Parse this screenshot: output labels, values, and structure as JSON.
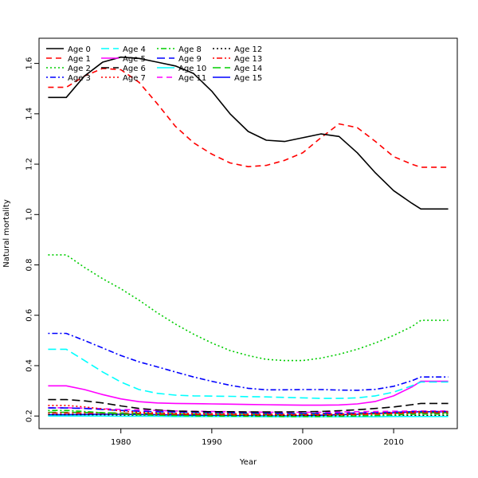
{
  "chart_data": {
    "type": "line",
    "title": "",
    "xlabel": "Year",
    "ylabel": "Natural mortality",
    "xlim": [
      1971,
      2017
    ],
    "ylim": [
      0.15,
      1.7
    ],
    "grid": false,
    "legend_position": "top-left",
    "x_ticks": [
      1980,
      1990,
      2000,
      2010
    ],
    "x_tick_labels": [
      "1980",
      "1990",
      "2000",
      "2010"
    ],
    "y_ticks": [
      0.2,
      0.4,
      0.6,
      0.8,
      1.0,
      1.2,
      1.4,
      1.6
    ],
    "y_tick_labels": [
      "0.2",
      "0.4",
      "0.6",
      "0.8",
      "1.0",
      "1.2",
      "1.4",
      "1.6"
    ],
    "x": [
      1972,
      1974,
      1976,
      1978,
      1980,
      1982,
      1984,
      1986,
      1988,
      1990,
      1992,
      1994,
      1996,
      1998,
      2000,
      2002,
      2004,
      2006,
      2008,
      2010,
      2012,
      2013,
      2014,
      2016
    ],
    "series": [
      {
        "name": "Age 0",
        "color": "#000000",
        "dash": "solid",
        "values": [
          1.465,
          1.465,
          1.55,
          1.605,
          1.625,
          1.62,
          1.605,
          1.59,
          1.56,
          1.49,
          1.4,
          1.33,
          1.295,
          1.29,
          1.305,
          1.32,
          1.31,
          1.245,
          1.165,
          1.095,
          1.045,
          1.022,
          1.022,
          1.022
        ]
      },
      {
        "name": "Age 1",
        "color": "#ff0000",
        "dash": "dashed",
        "values": [
          1.505,
          1.505,
          1.55,
          1.58,
          1.575,
          1.525,
          1.44,
          1.35,
          1.285,
          1.24,
          1.205,
          1.19,
          1.195,
          1.215,
          1.245,
          1.305,
          1.36,
          1.345,
          1.29,
          1.23,
          1.2,
          1.188,
          1.188,
          1.188
        ]
      },
      {
        "name": "Age 2",
        "color": "#00cd00",
        "dash": "dotted",
        "values": [
          0.84,
          0.84,
          0.79,
          0.745,
          0.705,
          0.66,
          0.61,
          0.565,
          0.525,
          0.49,
          0.46,
          0.44,
          0.425,
          0.42,
          0.42,
          0.43,
          0.445,
          0.465,
          0.49,
          0.52,
          0.555,
          0.58,
          0.58,
          0.58
        ]
      },
      {
        "name": "Age 3",
        "color": "#0000ff",
        "dash": "dashdot",
        "values": [
          0.528,
          0.528,
          0.5,
          0.47,
          0.44,
          0.415,
          0.395,
          0.375,
          0.355,
          0.338,
          0.322,
          0.31,
          0.304,
          0.304,
          0.305,
          0.305,
          0.303,
          0.302,
          0.306,
          0.318,
          0.34,
          0.355,
          0.355,
          0.355
        ]
      },
      {
        "name": "Age 4",
        "color": "#00ffff",
        "dash": "longdash",
        "values": [
          0.465,
          0.465,
          0.42,
          0.375,
          0.335,
          0.305,
          0.29,
          0.283,
          0.28,
          0.279,
          0.278,
          0.277,
          0.276,
          0.274,
          0.272,
          0.27,
          0.27,
          0.272,
          0.28,
          0.295,
          0.32,
          0.335,
          0.335,
          0.335
        ]
      },
      {
        "name": "Age 5",
        "color": "#ff00ff",
        "dash": "solid",
        "values": [
          0.32,
          0.32,
          0.305,
          0.285,
          0.268,
          0.257,
          0.252,
          0.25,
          0.249,
          0.248,
          0.247,
          0.246,
          0.245,
          0.244,
          0.243,
          0.243,
          0.244,
          0.248,
          0.258,
          0.28,
          0.315,
          0.338,
          0.338,
          0.338
        ]
      },
      {
        "name": "Age 6",
        "color": "#000000",
        "dash": "longdash",
        "values": [
          0.265,
          0.265,
          0.26,
          0.252,
          0.24,
          0.23,
          0.224,
          0.22,
          0.218,
          0.217,
          0.217,
          0.216,
          0.216,
          0.216,
          0.217,
          0.218,
          0.221,
          0.225,
          0.23,
          0.236,
          0.245,
          0.25,
          0.25,
          0.25
        ]
      },
      {
        "name": "Age 7",
        "color": "#ff0000",
        "dash": "dotted",
        "values": [
          0.242,
          0.242,
          0.236,
          0.228,
          0.22,
          0.215,
          0.212,
          0.211,
          0.21,
          0.209,
          0.209,
          0.208,
          0.208,
          0.207,
          0.207,
          0.207,
          0.208,
          0.209,
          0.211,
          0.213,
          0.216,
          0.218,
          0.218,
          0.218
        ]
      },
      {
        "name": "Age 8",
        "color": "#00cd00",
        "dash": "dashdot",
        "values": [
          0.222,
          0.222,
          0.218,
          0.213,
          0.208,
          0.205,
          0.203,
          0.202,
          0.201,
          0.2,
          0.2,
          0.199,
          0.199,
          0.198,
          0.198,
          0.198,
          0.199,
          0.2,
          0.202,
          0.204,
          0.207,
          0.208,
          0.208,
          0.208
        ]
      },
      {
        "name": "Age 9",
        "color": "#0000ff",
        "dash": "longdash",
        "values": [
          0.232,
          0.232,
          0.23,
          0.226,
          0.222,
          0.219,
          0.217,
          0.216,
          0.215,
          0.214,
          0.213,
          0.212,
          0.211,
          0.21,
          0.21,
          0.21,
          0.211,
          0.212,
          0.213,
          0.215,
          0.217,
          0.218,
          0.218,
          0.218
        ]
      },
      {
        "name": "Age 10",
        "color": "#00ffff",
        "dash": "solid",
        "values": [
          0.2,
          0.2,
          0.2,
          0.2,
          0.199,
          0.199,
          0.199,
          0.198,
          0.198,
          0.198,
          0.198,
          0.198,
          0.197,
          0.197,
          0.197,
          0.197,
          0.197,
          0.197,
          0.197,
          0.198,
          0.198,
          0.198,
          0.198,
          0.198
        ]
      },
      {
        "name": "Age 11",
        "color": "#ff00ff",
        "dash": "dashed",
        "values": [
          0.233,
          0.233,
          0.231,
          0.229,
          0.226,
          0.224,
          0.222,
          0.22,
          0.219,
          0.218,
          0.217,
          0.216,
          0.215,
          0.215,
          0.215,
          0.215,
          0.216,
          0.217,
          0.218,
          0.219,
          0.22,
          0.22,
          0.22,
          0.22
        ]
      },
      {
        "name": "Age 12",
        "color": "#000000",
        "dash": "dotted",
        "values": [
          0.205,
          0.205,
          0.205,
          0.204,
          0.203,
          0.203,
          0.202,
          0.202,
          0.202,
          0.201,
          0.201,
          0.201,
          0.201,
          0.201,
          0.201,
          0.201,
          0.201,
          0.201,
          0.201,
          0.201,
          0.202,
          0.202,
          0.202,
          0.202
        ]
      },
      {
        "name": "Age 13",
        "color": "#ff0000",
        "dash": "dashdot",
        "values": [
          0.212,
          0.212,
          0.212,
          0.211,
          0.21,
          0.209,
          0.208,
          0.207,
          0.206,
          0.205,
          0.205,
          0.204,
          0.204,
          0.204,
          0.204,
          0.204,
          0.205,
          0.206,
          0.207,
          0.209,
          0.211,
          0.212,
          0.212,
          0.212
        ]
      },
      {
        "name": "Age 14",
        "color": "#00cd00",
        "dash": "longdash",
        "values": [
          0.215,
          0.215,
          0.214,
          0.213,
          0.212,
          0.211,
          0.21,
          0.209,
          0.208,
          0.208,
          0.207,
          0.207,
          0.206,
          0.206,
          0.206,
          0.207,
          0.207,
          0.208,
          0.209,
          0.21,
          0.212,
          0.213,
          0.213,
          0.213
        ]
      },
      {
        "name": "Age 15",
        "color": "#0000ff",
        "dash": "solid",
        "values": [
          0.205,
          0.205,
          0.206,
          0.207,
          0.207,
          0.206,
          0.205,
          0.204,
          0.203,
          0.202,
          0.202,
          0.201,
          0.2,
          0.2,
          0.201,
          0.203,
          0.205,
          0.207,
          0.21,
          0.213,
          0.216,
          0.217,
          0.217,
          0.217
        ]
      }
    ]
  }
}
